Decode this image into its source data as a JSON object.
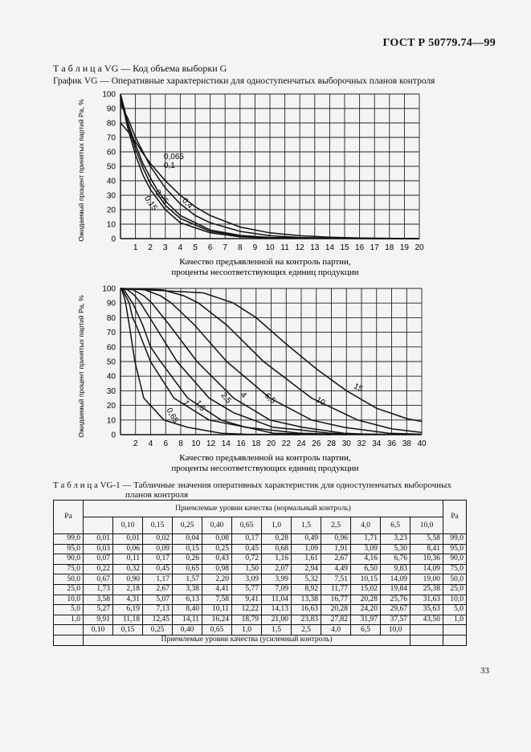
{
  "header": {
    "doc_id": "ГОСТ Р 50779.74—99",
    "page_number": "33"
  },
  "table_vg_title": "Т а б л и ц а   VG — Код объема выборки G",
  "graph_vg_title": "График VG — Оперативные характеристики для одноступенчатых выборочных планов контроля",
  "chart_data": [
    {
      "type": "line",
      "ylabel": "Ожидаемый процент принятых партий Pa, %",
      "xlabel_line1": "Качество предъявленной на контроль партии,",
      "xlabel_line2": "проценты несоответствующих единиц продукции",
      "xlim": [
        0,
        20
      ],
      "ylim": [
        0,
        100
      ],
      "x_ticks": [
        1,
        2,
        3,
        4,
        5,
        6,
        7,
        8,
        9,
        10,
        11,
        12,
        13,
        14,
        15,
        16,
        17,
        18,
        19,
        20
      ],
      "y_ticks": [
        0,
        10,
        20,
        30,
        40,
        50,
        60,
        70,
        80,
        90,
        100
      ],
      "series": [
        {
          "name": "0,065",
          "x": [
            0,
            0.25,
            0.5,
            1,
            1.5,
            2,
            3,
            4,
            6,
            8,
            10,
            14,
            20
          ],
          "y": [
            100,
            90,
            79,
            62,
            49,
            38,
            23,
            14,
            5,
            2,
            0.7,
            0.1,
            0
          ]
        },
        {
          "name": "0,1",
          "x": [
            0,
            0.25,
            0.5,
            1,
            1.5,
            2,
            3,
            4,
            6,
            8,
            10,
            14,
            20
          ],
          "y": [
            100,
            87,
            76,
            58,
            44,
            34,
            20,
            11,
            4,
            1.3,
            0.5,
            0.1,
            0
          ]
        },
        {
          "name": "0,15",
          "x": [
            0,
            0.25,
            0.5,
            1,
            1.5,
            2,
            2.5,
            3,
            4,
            6,
            8,
            10,
            14,
            20
          ],
          "y": [
            96,
            88,
            80,
            65,
            52,
            42,
            33,
            26,
            16,
            6,
            2.2,
            0.8,
            0.1,
            0
          ]
        },
        {
          "name": "0,25",
          "x": [
            0,
            0.25,
            0.5,
            1,
            1.5,
            2,
            3,
            4,
            5,
            6,
            8,
            10,
            12,
            14,
            20
          ],
          "y": [
            93,
            88,
            83,
            70,
            60,
            50,
            35,
            24,
            16,
            11,
            5,
            2,
            0.8,
            0.3,
            0
          ]
        },
        {
          "name": "0,4",
          "x": [
            0,
            0.25,
            0.5,
            1,
            1.5,
            2,
            3,
            4,
            5,
            6,
            8,
            10,
            12,
            14,
            16,
            20
          ],
          "y": [
            80,
            77,
            74,
            67,
            59,
            52,
            40,
            30,
            22,
            16,
            8,
            4,
            2,
            1,
            0.4,
            0
          ]
        }
      ]
    },
    {
      "type": "line",
      "ylabel": "Ожидаемый процент принятых партий Pa, %",
      "xlabel_line1": "Качество предъявленной на контроль партии,",
      "xlabel_line2": "проценты несоответствующих единиц продукции",
      "xlim": [
        0,
        40
      ],
      "ylim": [
        0,
        100
      ],
      "x_ticks": [
        2,
        4,
        6,
        8,
        10,
        12,
        14,
        16,
        18,
        20,
        22,
        24,
        26,
        28,
        30,
        32,
        34,
        36,
        38,
        40
      ],
      "y_ticks": [
        0,
        10,
        20,
        30,
        40,
        50,
        60,
        70,
        80,
        90,
        100
      ],
      "series": [
        {
          "name": "0,65",
          "x": [
            0,
            0.17,
            0.45,
            0.68,
            1.16,
            1.91,
            3.09,
            5.77,
            8.92,
            13.38,
            16.63,
            23.83
          ],
          "y": [
            100,
            99,
            95,
            90,
            75,
            50,
            25,
            10,
            5,
            1,
            0.3,
            0
          ]
        },
        {
          "name": "1",
          "x": [
            0,
            0.28,
            0.68,
            1.16,
            1.61,
            2.07,
            3.99,
            7.09,
            11.77,
            16.77,
            20.28,
            28
          ],
          "y": [
            100,
            99,
            95,
            90,
            80,
            75,
            50,
            25,
            10,
            5,
            1,
            0
          ]
        },
        {
          "name": "1,5",
          "x": [
            0,
            0.49,
            0.96,
            1.61,
            2.94,
            3.99,
            5.32,
            8.92,
            13.38,
            16.63,
            23.83,
            30
          ],
          "y": [
            100,
            99,
            95,
            90,
            75,
            60,
            50,
            25,
            10,
            5,
            1,
            0
          ]
        },
        {
          "name": "2,5",
          "x": [
            0,
            0.96,
            1.91,
            2.67,
            4.49,
            7.51,
            11.77,
            15.02,
            20.28,
            24.2,
            27.82,
            34
          ],
          "y": [
            100,
            99,
            95,
            90,
            75,
            50,
            25,
            15,
            5,
            3,
            1,
            0
          ]
        },
        {
          "name": "4",
          "x": [
            0,
            1.71,
            3.09,
            4.16,
            6.5,
            10.15,
            15.02,
            19.84,
            24.2,
            29.67,
            32,
            38
          ],
          "y": [
            100,
            99,
            95,
            90,
            75,
            50,
            25,
            10,
            5,
            1,
            0.5,
            0
          ]
        },
        {
          "name": "6,5",
          "x": [
            0,
            3.23,
            5.3,
            6.76,
            9.83,
            14.09,
            19.84,
            25.38,
            29.67,
            35.63,
            40
          ],
          "y": [
            100,
            99,
            95,
            90,
            75,
            50,
            25,
            10,
            5,
            1,
            0.3
          ]
        },
        {
          "name": "10",
          "x": [
            0,
            5.56,
            8.41,
            10.36,
            14.09,
            19.0,
            25.38,
            31.5,
            36,
            40
          ],
          "y": [
            100,
            99,
            95,
            90,
            75,
            50,
            25,
            10,
            4,
            1.5
          ]
        },
        {
          "name": "15",
          "x": [
            0,
            11,
            15,
            18,
            22,
            26,
            30,
            34,
            38,
            40
          ],
          "y": [
            100,
            97,
            90,
            80,
            62,
            45,
            30,
            18,
            11,
            9
          ]
        }
      ]
    }
  ],
  "table_vg1_title_line1": "Т а б л и ц а   VG-1 — Табличные значения оперативных характеристик для одноступенчатых выборочных",
  "table_vg1_title_line2": "планов контроля",
  "table_vg1": {
    "pa_header": "Pa",
    "top_header": "Приемлемые уровни качества (нормальный контроль)",
    "top_levels": [
      "0,10",
      "0,15",
      "0,25",
      "0,40",
      "0,65",
      "1,0",
      "1,5",
      "2,5",
      "4,0",
      "6,5",
      "10,0"
    ],
    "rows": [
      [
        "99,0",
        "0,01",
        "0,01",
        "0,02",
        "0,04",
        "0,08",
        "0,17",
        "0,28",
        "0,49",
        "0,96",
        "1,71",
        "3,23",
        "5,58",
        "99,0"
      ],
      [
        "95,0",
        "0,03",
        "0,06",
        "0,09",
        "0,15",
        "0,25",
        "0,45",
        "0,68",
        "1,09",
        "1,91",
        "3,09",
        "5,30",
        "8,41",
        "95,0"
      ],
      [
        "90,0",
        "0,07",
        "0,11",
        "0,17",
        "0,26",
        "0,43",
        "0,72",
        "1,16",
        "1,61",
        "2,67",
        "4,16",
        "6,76",
        "10,36",
        "90,0"
      ],
      [
        "75,0",
        "0,22",
        "0,32",
        "0,45",
        "0,65",
        "0,98",
        "1,50",
        "2,07",
        "2,94",
        "4,49",
        "6,50",
        "9,83",
        "14,09",
        "75,0"
      ],
      [
        "50,0",
        "0,67",
        "0,90",
        "1,17",
        "1,57",
        "2,20",
        "3,09",
        "3,99",
        "5,32",
        "7,51",
        "10,15",
        "14,09",
        "19,00",
        "50,0"
      ],
      [
        "25,0",
        "1,73",
        "2,18",
        "2,67",
        "3,38",
        "4,41",
        "5,77",
        "7,09",
        "8,92",
        "11,77",
        "15,02",
        "19,84",
        "25,38",
        "25,0"
      ],
      [
        "10,0",
        "3,58",
        "4,31",
        "5,07",
        "6,13",
        "7,58",
        "9,41",
        "11,04",
        "13,38",
        "16,77",
        "20,28",
        "25,76",
        "31,63",
        "10,0"
      ],
      [
        "5,0",
        "5,27",
        "6,19",
        "7,13",
        "8,40",
        "10,11",
        "12,22",
        "14,13",
        "16,63",
        "20,28",
        "24,20",
        "29,67",
        "35,63",
        "5,0"
      ],
      [
        "1,0",
        "9,91",
        "11,18",
        "12,45",
        "14,11",
        "16,24",
        "18,79",
        "21,00",
        "23,83",
        "27,82",
        "31,97",
        "37,57",
        "43,50",
        "1,0"
      ]
    ],
    "bottom_levels": [
      "0,10",
      "0,15",
      "0,25",
      "0,40",
      "0,65",
      "1,0",
      "1,5",
      "2,5",
      "4,0",
      "6,5",
      "10,0"
    ],
    "bottom_header": "Приемлемые уровни качества (усиленный контроль)"
  }
}
